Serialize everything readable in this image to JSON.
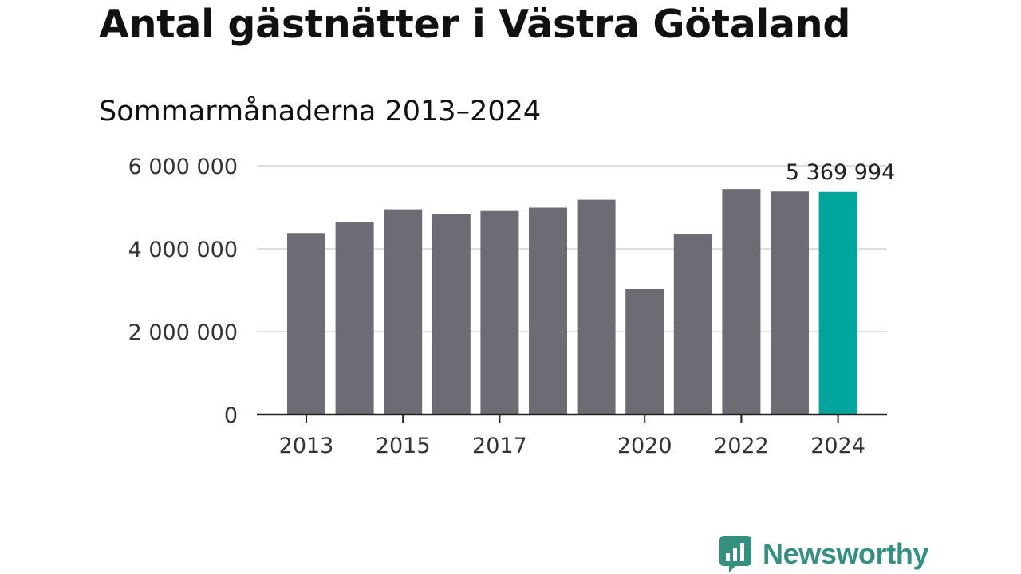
{
  "chart_data": {
    "type": "bar",
    "title": "Antal gästnätter i Västra Götaland",
    "subtitle": "Sommarmånaderna 2013–2024",
    "categories": [
      "2013",
      "2014",
      "2015",
      "2016",
      "2017",
      "2018",
      "2019",
      "2020",
      "2021",
      "2022",
      "2023",
      "2024"
    ],
    "values": [
      4380000,
      4650000,
      4950000,
      4830000,
      4910000,
      4990000,
      5180000,
      3030000,
      4350000,
      5440000,
      5380000,
      5369994
    ],
    "x_tick_labels": [
      "2013",
      "2015",
      "2017",
      "2020",
      "2022",
      "2024"
    ],
    "y_ticks": [
      0,
      2000000,
      4000000,
      6000000
    ],
    "y_tick_labels": [
      "0",
      "2 000 000",
      "4 000 000",
      "6 000 000"
    ],
    "ylim": [
      0,
      6000000
    ],
    "grid": true,
    "highlight_index": 11,
    "annotation": {
      "index": 11,
      "text": "5 369 994"
    },
    "colors": {
      "bar": "#6d6c74",
      "highlight": "#00a69c",
      "grid": "#dedede",
      "axis": "#222222"
    }
  },
  "brand": {
    "name": "Newsworthy",
    "icon": "newsworthy-logo-icon",
    "color": "#36907f"
  }
}
